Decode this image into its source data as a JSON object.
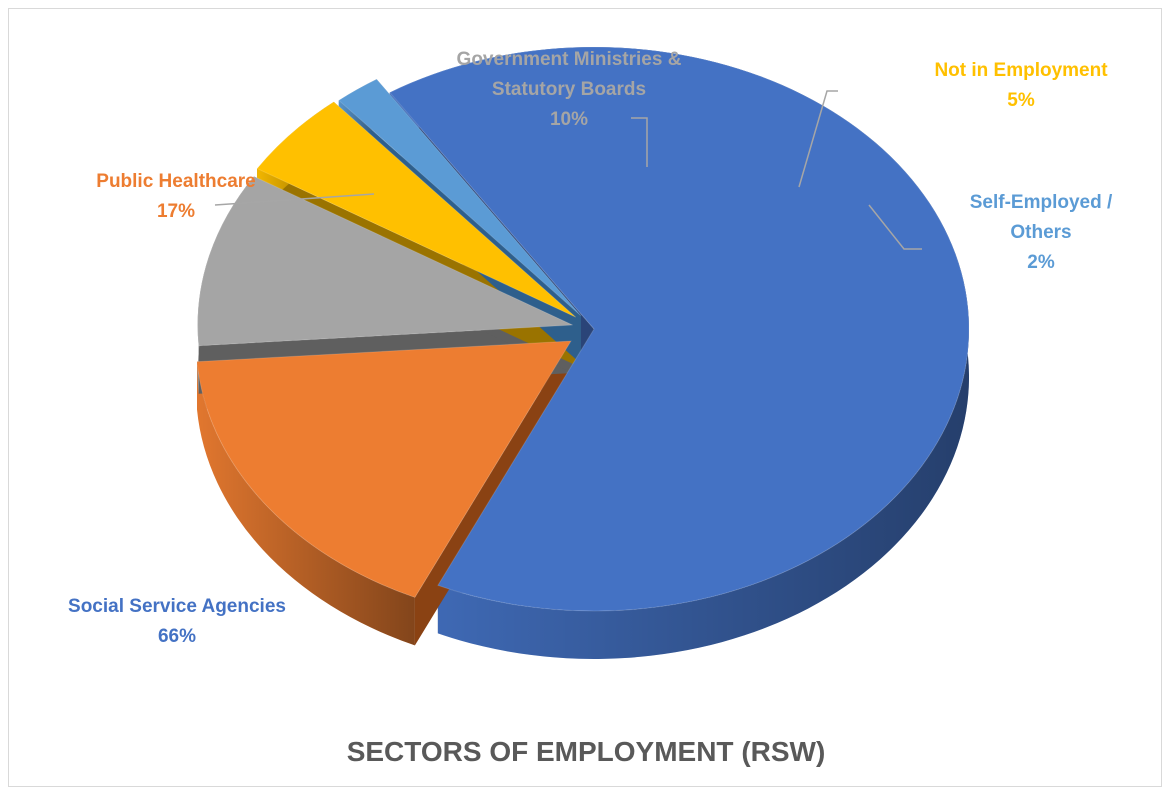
{
  "chart_data": {
    "type": "pie",
    "title": "SECTORS OF EMPLOYMENT (RSW)",
    "style": "3d-exploded",
    "slices": [
      {
        "label_lines": [
          "Social Service Agencies"
        ],
        "pct_text": "66%",
        "value": 66,
        "color": "#4472c4",
        "dark": "#2a4478"
      },
      {
        "label_lines": [
          "Public Healthcare"
        ],
        "pct_text": "17%",
        "value": 17,
        "color": "#ed7d31",
        "dark": "#8a4213"
      },
      {
        "label_lines": [
          "Government Ministries &",
          "Statutory Boards"
        ],
        "pct_text": "10%",
        "value": 10,
        "color": "#a5a5a5",
        "dark": "#5f5f5f"
      },
      {
        "label_lines": [
          "Not in Employment"
        ],
        "pct_text": "5%",
        "value": 5,
        "color": "#ffc000",
        "dark": "#9a7300"
      },
      {
        "label_lines": [
          "Self-Employed /",
          "Others"
        ],
        "pct_text": "2%",
        "value": 2,
        "color": "#5b9bd5",
        "dark": "#2e5f8c"
      }
    ]
  }
}
